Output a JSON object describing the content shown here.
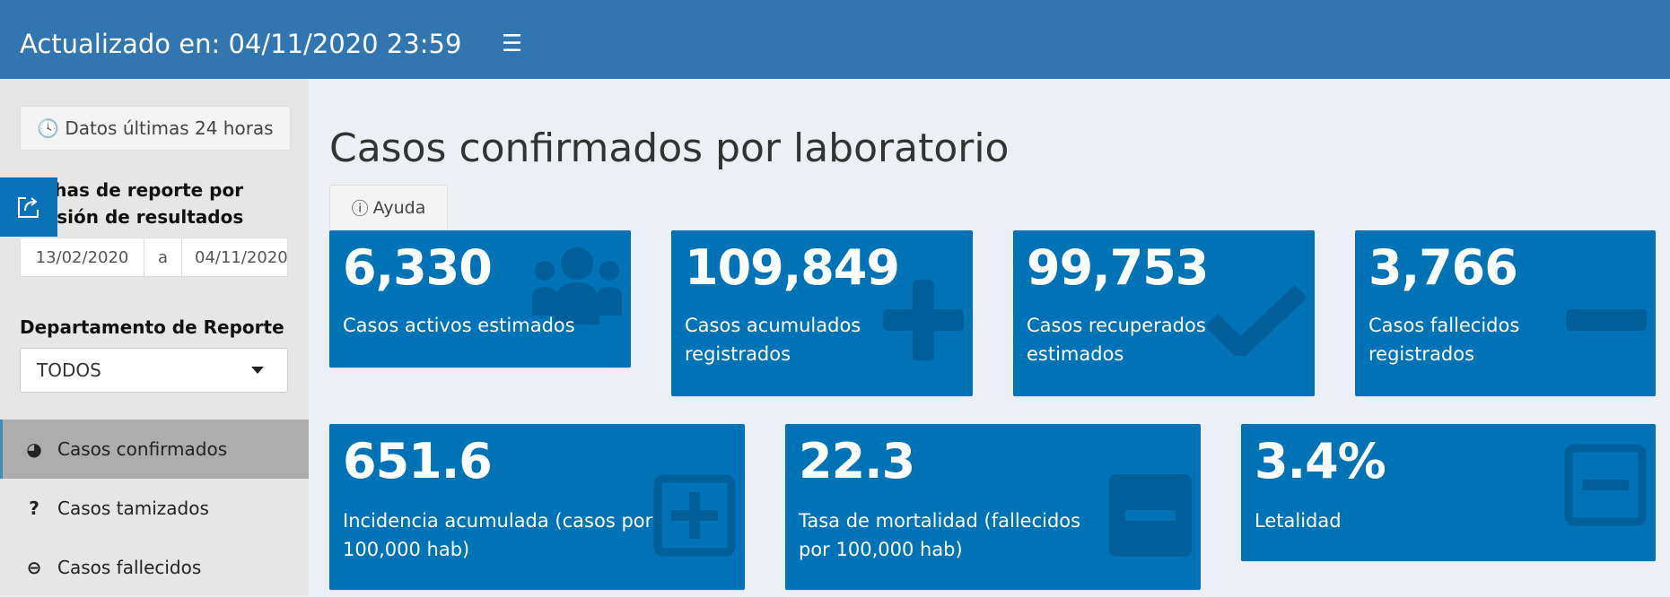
{
  "header": {
    "title": "Actualizado en: 04/11/2020 23:59",
    "menu_icon": "hamburger-icon"
  },
  "sidebar": {
    "last24_label": "Datos últimas 24 horas",
    "date_label_line1": "Fechas de reporte por",
    "date_label_line2": "emisión de resultados",
    "date_from": "13/02/2020",
    "date_sep": "a",
    "date_to": "04/11/2020",
    "dept_label": "Departamento de Reporte",
    "dept_value": "TODOS",
    "nav": [
      {
        "label": "Casos confirmados",
        "icon": "dashboard-icon",
        "active": true
      },
      {
        "label": "Casos tamizados",
        "icon": "question-icon"
      },
      {
        "label": "Casos fallecidos",
        "icon": "minus-circle-icon"
      }
    ]
  },
  "main": {
    "title": "Casos confirmados por laboratorio",
    "help_label": "Ayuda",
    "cards": [
      {
        "value": "6,330",
        "label": "Casos activos estimados",
        "icon": "users-icon"
      },
      {
        "value": "109,849",
        "label": "Casos acumulados registrados",
        "icon": "plus-icon"
      },
      {
        "value": "99,753",
        "label": "Casos recuperados estimados",
        "icon": "check-icon"
      },
      {
        "value": "3,766",
        "label": "Casos fallecidos registrados",
        "icon": "minus-icon"
      },
      {
        "value": "651.6",
        "label": "Incidencia acumulada (casos por 100,000 hab)",
        "icon": "plus-square-icon"
      },
      {
        "value": "22.3",
        "label": "Tasa de mortalidad (fallecidos por 100,000 hab)",
        "icon": "minus-square-icon"
      },
      {
        "value": "3.4%",
        "label": "Letalidad",
        "icon": "minus-square-o-icon"
      }
    ]
  },
  "colors": {
    "header": "#3276b1",
    "card": "#0073b7",
    "background": "#ecf0f5",
    "sidebar": "#e6e6e6"
  }
}
